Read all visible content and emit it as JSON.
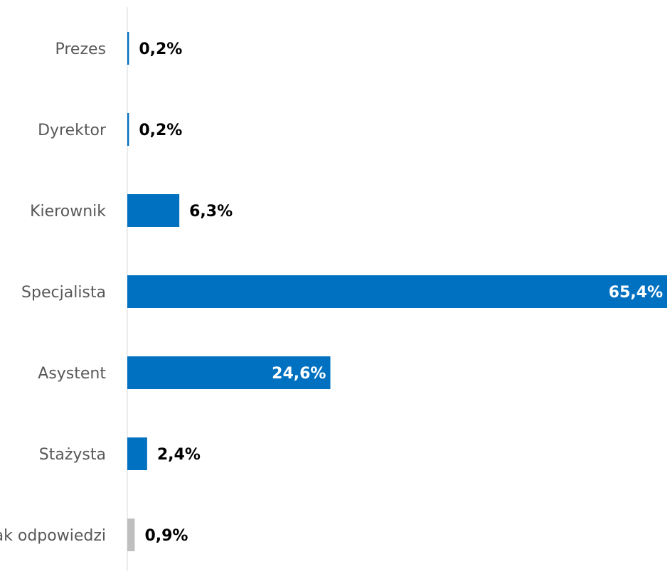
{
  "chart_data": {
    "type": "bar",
    "orientation": "horizontal",
    "categories": [
      "Prezes",
      "Dyrektor",
      "Kierownik",
      "Specjalista",
      "Asystent",
      "Stażysta",
      "Brak odpowiedzi"
    ],
    "values": [
      0.2,
      0.2,
      6.3,
      65.4,
      24.6,
      2.4,
      0.9
    ],
    "value_labels": [
      "0,2%",
      "0,2%",
      "6,3%",
      "65,4%",
      "24,6%",
      "2,4%",
      "0,9%"
    ],
    "unit": "%",
    "xlim": [
      0,
      65.4
    ],
    "grid": false,
    "legend": "none",
    "colors": {
      "bar": "#0070C0",
      "bar_no_answer": "#BFBFBF",
      "axis_line": "#D9D9D9",
      "category_text": "#595959",
      "label_outside": "#000000",
      "label_inside": "#ffffff"
    },
    "inside_label_categories": [
      "Specjalista",
      "Asystent"
    ],
    "muted_categories": [
      "Brak odpowiedzi"
    ]
  }
}
